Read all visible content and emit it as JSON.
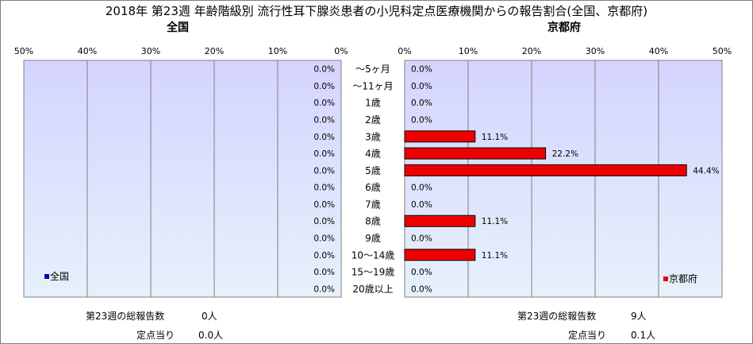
{
  "title": "2018年 第23週 年齢階級別 流行性耳下腺炎患者の小児科定点医療機関からの報告割合(全国、京都府)",
  "left_panel": {
    "subtitle": "全国",
    "legend": "全国",
    "total_label": "第23週の総報告数",
    "total_value": "0人",
    "per_label": "定点当り",
    "per_value": "0.0人"
  },
  "right_panel": {
    "subtitle": "京都府",
    "legend": "京都府",
    "total_label": "第23週の総報告数",
    "total_value": "9人",
    "per_label": "定点当り",
    "per_value": "0.1人"
  },
  "chart_data": [
    {
      "type": "bar",
      "orientation": "horizontal",
      "direction": "right-to-left",
      "title": "全国",
      "categories": [
        "～5ヶ月",
        "～11ヶ月",
        "1歳",
        "2歳",
        "3歳",
        "4歳",
        "5歳",
        "6歳",
        "7歳",
        "8歳",
        "9歳",
        "10～14歳",
        "15～19歳",
        "20歳以上"
      ],
      "series": [
        {
          "name": "全国",
          "values": [
            0,
            0,
            0,
            0,
            0,
            0,
            0,
            0,
            0,
            0,
            0,
            0,
            0,
            0
          ]
        }
      ],
      "value_labels": [
        "0.0%",
        "0.0%",
        "0.0%",
        "0.0%",
        "0.0%",
        "0.0%",
        "0.0%",
        "0.0%",
        "0.0%",
        "0.0%",
        "0.0%",
        "0.0%",
        "0.0%",
        "0.0%"
      ],
      "xlim": [
        0,
        50
      ],
      "ticks": [
        "50%",
        "40%",
        "30%",
        "20%",
        "10%",
        "0%"
      ],
      "grid": true,
      "legend": "bottom-left",
      "colors": {
        "bar": "#0000aa",
        "plot_top": "#d4d4ff",
        "plot_bottom": "#e6f1fb"
      }
    },
    {
      "type": "bar",
      "orientation": "horizontal",
      "direction": "left-to-right",
      "title": "京都府",
      "categories": [
        "～5ヶ月",
        "～11ヶ月",
        "1歳",
        "2歳",
        "3歳",
        "4歳",
        "5歳",
        "6歳",
        "7歳",
        "8歳",
        "9歳",
        "10～14歳",
        "15～19歳",
        "20歳以上"
      ],
      "series": [
        {
          "name": "京都府",
          "values": [
            0,
            0,
            0,
            0,
            11.1,
            22.2,
            44.4,
            0,
            0,
            11.1,
            0,
            11.1,
            0,
            0
          ]
        }
      ],
      "value_labels": [
        "0.0%",
        "0.0%",
        "0.0%",
        "0.0%",
        "11.1%",
        "22.2%",
        "44.4%",
        "0.0%",
        "0.0%",
        "11.1%",
        "0.0%",
        "11.1%",
        "0.0%",
        "0.0%"
      ],
      "xlim": [
        0,
        50
      ],
      "ticks": [
        "0%",
        "10%",
        "20%",
        "30%",
        "40%",
        "50%"
      ],
      "grid": true,
      "legend": "bottom-right",
      "colors": {
        "bar": "#ee0000",
        "plot_top": "#d4d4ff",
        "plot_bottom": "#e6f1fb"
      }
    }
  ]
}
